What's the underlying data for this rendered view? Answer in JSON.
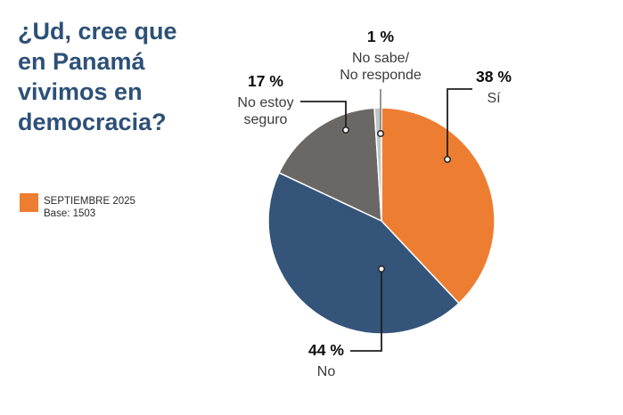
{
  "title": "¿Ud, cree que en Panamá vivimos en democracia?",
  "title_lines": [
    "¿Ud, cree que",
    "en Panamá",
    "vivimos en",
    "democracia?"
  ],
  "colors": {
    "title_text": "#2D5077",
    "background": "#FFFFFF",
    "leader_line": "#1F1F1F",
    "leader_line_light": "#8A8A8A",
    "dot_fill": "#FFFFFF",
    "dot_ring": "#2B2B2B"
  },
  "chart_data": {
    "type": "pie",
    "title": "¿Ud, cree que en Panamá vivimos en democracia?",
    "unit": "%",
    "start_angle_deg": 0,
    "direction": "clockwise",
    "legend": {
      "label": "SEPTIEMBRE 2025",
      "base": "Base: 1503",
      "swatch_color": "#ED7D31"
    },
    "slices": [
      {
        "key": "si",
        "label": "Sí",
        "label_lines": [
          "Sí"
        ],
        "value": 38,
        "pct_label": "38 %",
        "color": "#ED7D31"
      },
      {
        "key": "no",
        "label": "No",
        "label_lines": [
          "No"
        ],
        "value": 44,
        "pct_label": "44 %",
        "color": "#34547A"
      },
      {
        "key": "no-estoy-seguro",
        "label": "No estoy seguro",
        "label_lines": [
          "No estoy",
          "seguro"
        ],
        "value": 17,
        "pct_label": "17 %",
        "color": "#6B6764"
      },
      {
        "key": "no-sabe-no-responde",
        "label": "No sabe/No responde",
        "label_lines": [
          "No sabe/",
          "No responde"
        ],
        "value": 1,
        "pct_label": "1 %",
        "color": "#C3C3C3"
      }
    ]
  }
}
